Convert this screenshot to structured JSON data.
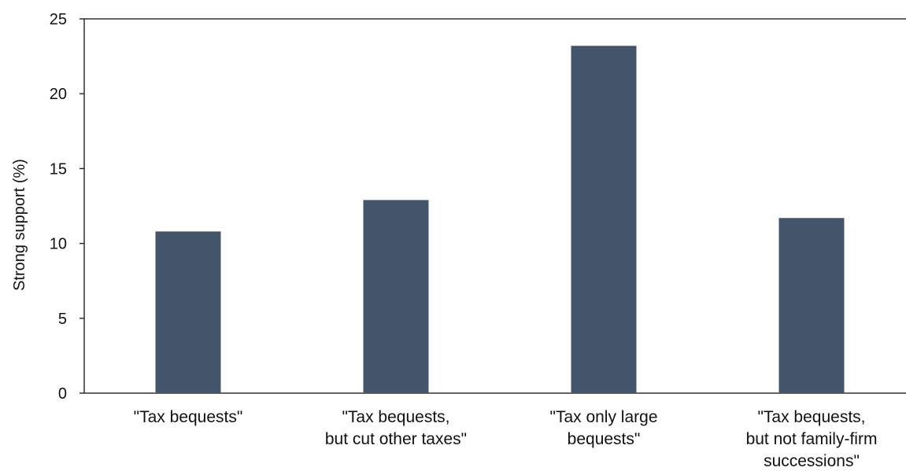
{
  "chart_data": {
    "type": "bar",
    "title": "",
    "xlabel": "",
    "ylabel": "Strong support (%)",
    "ylim": [
      0,
      25
    ],
    "yticks": [
      0,
      5,
      10,
      15,
      20,
      25
    ],
    "grid": false,
    "legend": "none",
    "bar_color": "#44546a",
    "categories": [
      [
        "\"Tax bequests\""
      ],
      [
        "\"Tax bequests,",
        "but cut other taxes\""
      ],
      [
        "\"Tax only large",
        "bequests\""
      ],
      [
        "\"Tax bequests,",
        "but not family-firm",
        "successions\""
      ]
    ],
    "values": [
      10.8,
      12.9,
      23.2,
      11.7
    ]
  }
}
